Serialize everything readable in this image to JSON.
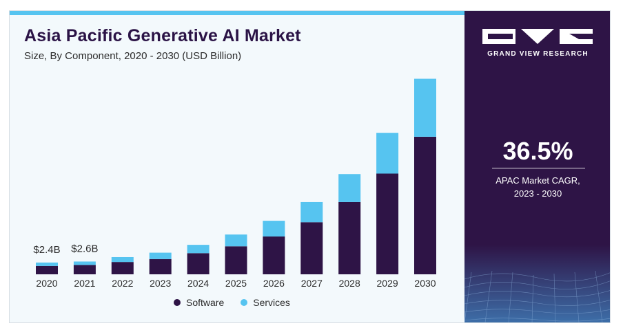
{
  "chart_data": {
    "type": "bar",
    "stacked": true,
    "title": "Asia Pacific Generative AI Market",
    "subtitle": "Size, By Component, 2020 - 2030 (USD Billion)",
    "categories": [
      "2020",
      "2021",
      "2022",
      "2023",
      "2024",
      "2025",
      "2026",
      "2027",
      "2028",
      "2029",
      "2030"
    ],
    "series": [
      {
        "name": "Software",
        "color": "#2e1446",
        "values": [
          1.7,
          1.9,
          2.5,
          3.1,
          4.3,
          5.7,
          7.7,
          10.6,
          14.7,
          20.5,
          28.0
        ]
      },
      {
        "name": "Services",
        "color": "#56c4f0",
        "values": [
          0.7,
          0.7,
          1.0,
          1.3,
          1.7,
          2.4,
          3.2,
          4.1,
          5.7,
          8.3,
          11.8
        ]
      }
    ],
    "data_labels": [
      {
        "category": "2020",
        "text": "$2.4B"
      },
      {
        "category": "2021",
        "text": "$2.6B"
      }
    ],
    "ylim": [
      0,
      41
    ],
    "grid": false,
    "legend_position": "bottom"
  },
  "sidebar": {
    "brand": "GRAND VIEW RESEARCH",
    "cagr_value": "36.5%",
    "cagr_label_line1": "APAC Market CAGR,",
    "cagr_label_line2": "2023 - 2030"
  }
}
